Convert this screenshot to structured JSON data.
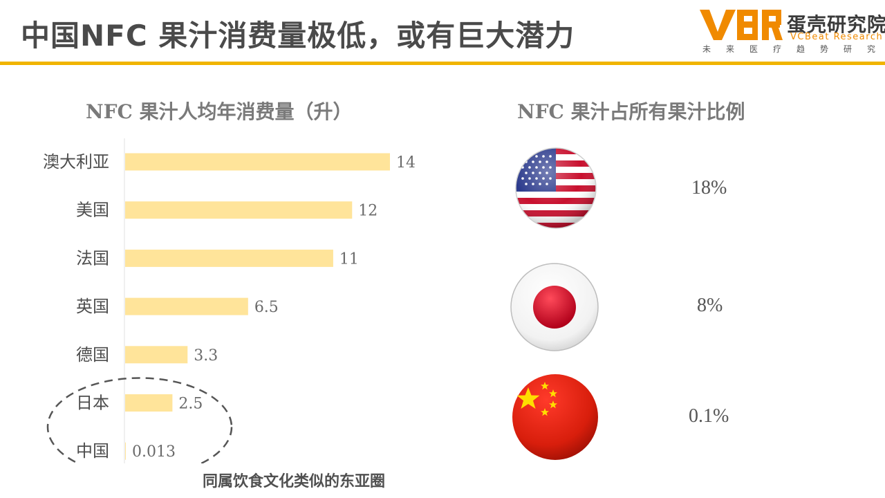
{
  "header": {
    "title": "中国NFC 果汁消费量极低，或有巨大潜力"
  },
  "logo": {
    "cn_name": "蛋壳研究院",
    "en_name": "VCBeat Research",
    "slogan": "未来医疗趋势研究",
    "accent_color": "#f08a00"
  },
  "left_panel": {
    "title": "NFC 果汁人均年消费量（升）"
  },
  "chart_data": {
    "type": "bar",
    "orientation": "horizontal",
    "title": "NFC 果汁人均年消费量（升）",
    "categories": [
      "澳大利亚",
      "美国",
      "法国",
      "英国",
      "德国",
      "日本",
      "中国"
    ],
    "values": [
      14,
      12,
      11,
      6.5,
      3.3,
      2.5,
      0.013
    ],
    "value_labels": [
      "14",
      "12",
      "11",
      "6.5",
      "3.3",
      "2.5",
      "0.013"
    ],
    "xlim": [
      0,
      14
    ],
    "bar_color": "#ffe49a",
    "grid": false
  },
  "annotation": {
    "text": "同属饮食文化类似的东亚圈"
  },
  "right_panel": {
    "title": "NFC 果汁占所有果汁比例",
    "items": [
      {
        "flag_icon": "usa-flag-icon",
        "share": "18%"
      },
      {
        "flag_icon": "japan-flag-icon",
        "share": "8%"
      },
      {
        "flag_icon": "china-flag-icon",
        "share": "0.1%"
      }
    ]
  }
}
